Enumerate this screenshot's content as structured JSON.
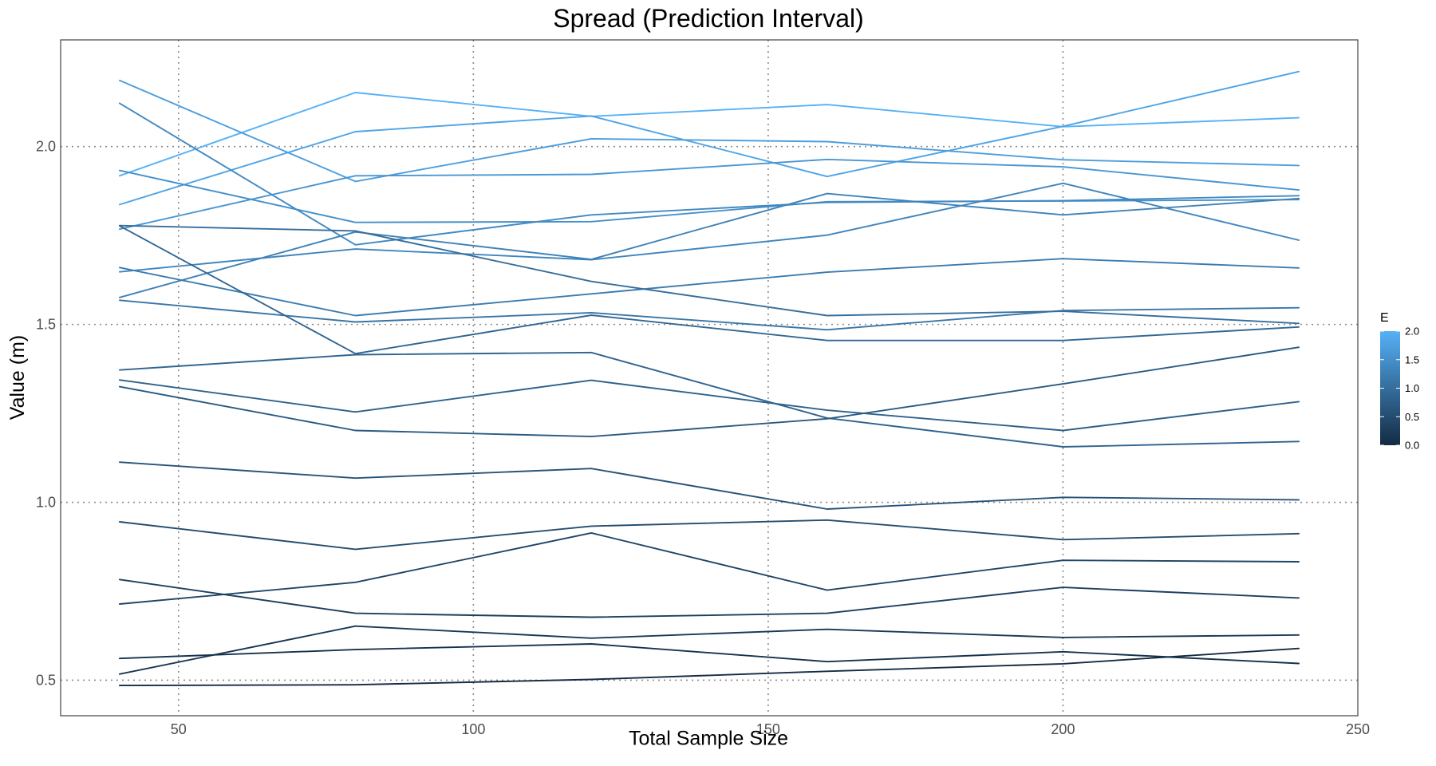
{
  "chart_data": {
    "type": "line",
    "title": "Spread (Prediction Interval)",
    "xlabel": "Total Sample Size",
    "ylabel": "Value (m)",
    "xlim": [
      30,
      250
    ],
    "ylim": [
      0.4,
      2.3
    ],
    "x_ticks": [
      50,
      100,
      150,
      200,
      250
    ],
    "y_ticks": [
      0.5,
      1.0,
      1.5,
      2.0
    ],
    "x_tick_labels": [
      "50",
      "100",
      "150",
      "200",
      "250"
    ],
    "y_tick_labels": [
      "0.5",
      "1.0",
      "1.5",
      "2.0"
    ],
    "grid": true,
    "x": [
      40,
      80,
      120,
      160,
      200,
      240
    ],
    "color_scale": {
      "title": "E",
      "range": [
        0.0,
        2.0
      ],
      "ticks": [
        0.0,
        0.5,
        1.0,
        1.5,
        2.0
      ],
      "tick_labels": [
        "0.0",
        "0.5",
        "1.0",
        "1.5",
        "2.0"
      ],
      "low_color": "#132b43",
      "high_color": "#56b1f7",
      "position": "right"
    },
    "series": [
      {
        "e": 0.0,
        "values": [
          0.485,
          0.487,
          0.502,
          0.525,
          0.546,
          0.589
        ]
      },
      {
        "e": 0.1,
        "values": [
          0.561,
          0.586,
          0.602,
          0.552,
          0.58,
          0.547
        ]
      },
      {
        "e": 0.2,
        "values": [
          0.517,
          0.652,
          0.618,
          0.643,
          0.62,
          0.627
        ]
      },
      {
        "e": 0.3,
        "values": [
          0.783,
          0.688,
          0.677,
          0.688,
          0.761,
          0.731
        ]
      },
      {
        "e": 0.4,
        "values": [
          0.714,
          0.775,
          0.914,
          0.753,
          0.837,
          0.833
        ]
      },
      {
        "e": 0.5,
        "values": [
          0.945,
          0.868,
          0.933,
          0.95,
          0.895,
          0.912
        ]
      },
      {
        "e": 0.6,
        "values": [
          1.113,
          1.068,
          1.095,
          0.981,
          1.014,
          1.007
        ]
      },
      {
        "e": 0.7,
        "values": [
          1.325,
          1.202,
          1.185,
          1.235,
          1.333,
          1.436
        ]
      },
      {
        "e": 0.8,
        "values": [
          1.344,
          1.254,
          1.343,
          1.259,
          1.202,
          1.283
        ]
      },
      {
        "e": 0.85,
        "values": [
          1.372,
          1.415,
          1.421,
          1.237,
          1.156,
          1.171
        ]
      },
      {
        "e": 0.9,
        "values": [
          1.777,
          1.418,
          1.526,
          1.455,
          1.455,
          1.493
        ]
      },
      {
        "e": 1.0,
        "values": [
          1.778,
          1.763,
          1.621,
          1.525,
          1.537,
          1.503
        ]
      },
      {
        "e": 1.1,
        "values": [
          1.568,
          1.507,
          1.533,
          1.485,
          1.539,
          1.547
        ]
      },
      {
        "e": 1.2,
        "values": [
          1.66,
          1.525,
          1.586,
          1.647,
          1.685,
          1.659
        ]
      },
      {
        "e": 1.3,
        "values": [
          1.576,
          1.76,
          1.683,
          1.868,
          1.808,
          1.854
        ]
      },
      {
        "e": 1.35,
        "values": [
          1.648,
          1.712,
          1.682,
          1.751,
          1.897,
          1.737
        ]
      },
      {
        "e": 1.4,
        "values": [
          2.122,
          1.724,
          1.808,
          1.843,
          1.848,
          1.862
        ]
      },
      {
        "e": 1.5,
        "values": [
          1.933,
          1.787,
          1.789,
          1.845,
          1.847,
          1.851
        ]
      },
      {
        "e": 1.6,
        "values": [
          1.768,
          1.918,
          1.922,
          1.964,
          1.943,
          1.878
        ]
      },
      {
        "e": 1.7,
        "values": [
          2.186,
          1.902,
          2.022,
          2.014,
          1.963,
          1.947
        ]
      },
      {
        "e": 1.8,
        "values": [
          1.837,
          2.042,
          2.086,
          1.916,
          2.057,
          2.211
        ]
      },
      {
        "e": 2.0,
        "values": [
          1.918,
          2.152,
          2.085,
          2.118,
          2.056,
          2.081
        ]
      }
    ]
  }
}
